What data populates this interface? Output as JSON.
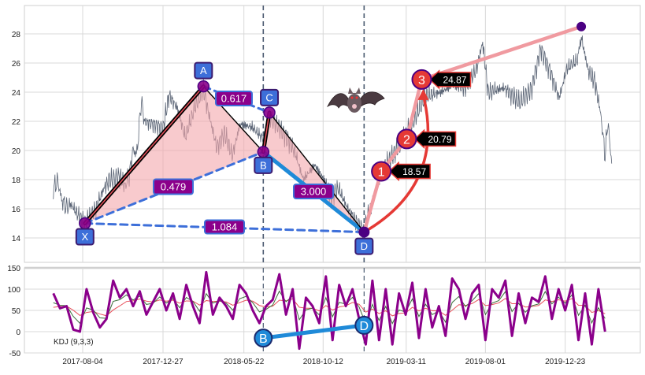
{
  "chart_data": [
    {
      "type": "line",
      "panel": "price",
      "ylim": [
        13,
        29.5
      ],
      "yticks": [
        14,
        16,
        18,
        20,
        22,
        24,
        26,
        28
      ],
      "grid": true,
      "colors": {
        "price": "#5a6475",
        "fill": "#f4a6ab",
        "leg": "#000000",
        "leg_inner": "#e8505b",
        "dashed": "#3d6fd9",
        "bd": "#1f8ad8",
        "target_path": "#f09aa0",
        "target": "#e53935",
        "marker": "#4b0082",
        "vline": "#4a5a70"
      },
      "series": [
        {
          "date": "2017-06-12",
          "value": 17.4
        },
        {
          "date": "2017-06-20",
          "value": 17.9
        },
        {
          "date": "2017-06-27",
          "value": 16.6
        },
        {
          "date": "2017-07-06",
          "value": 16.1
        },
        {
          "date": "2017-07-14",
          "value": 16.3
        },
        {
          "date": "2017-07-28",
          "value": 15.5
        },
        {
          "date": "2017-08-08",
          "value": 15.0
        },
        {
          "date": "2017-08-28",
          "value": 16.0
        },
        {
          "date": "2017-09-10",
          "value": 17.3
        },
        {
          "date": "2017-09-20",
          "value": 17.9
        },
        {
          "date": "2017-10-10",
          "value": 18.2
        },
        {
          "date": "2017-10-20",
          "value": 17.6
        },
        {
          "date": "2017-10-28",
          "value": 18.4
        },
        {
          "date": "2017-11-02",
          "value": 20.0
        },
        {
          "date": "2017-11-10",
          "value": 19.8
        },
        {
          "date": "2017-11-18",
          "value": 23.5
        },
        {
          "date": "2017-11-23",
          "value": 22.0
        },
        {
          "date": "2017-12-10",
          "value": 21.8
        },
        {
          "date": "2017-12-27",
          "value": 21.5
        },
        {
          "date": "2018-01-07",
          "value": 23.8
        },
        {
          "date": "2018-01-22",
          "value": 22.9
        },
        {
          "date": "2018-02-05",
          "value": 20.9
        },
        {
          "date": "2018-02-23",
          "value": 23.0
        },
        {
          "date": "2018-03-10",
          "value": 24.2
        },
        {
          "date": "2018-03-21",
          "value": 22.3
        },
        {
          "date": "2018-04-03",
          "value": 20.2
        },
        {
          "date": "2018-04-17",
          "value": 21.2
        },
        {
          "date": "2018-05-01",
          "value": 19.6
        },
        {
          "date": "2018-05-15",
          "value": 21.8
        },
        {
          "date": "2018-06-06",
          "value": 21.6
        },
        {
          "date": "2018-06-26",
          "value": 20.8
        },
        {
          "date": "2018-07-07",
          "value": 22.3
        },
        {
          "date": "2018-07-25",
          "value": 21.6
        },
        {
          "date": "2018-08-09",
          "value": 20.8
        },
        {
          "date": "2018-08-23",
          "value": 19.8
        },
        {
          "date": "2018-09-06",
          "value": 18.0
        },
        {
          "date": "2018-09-27",
          "value": 19.0
        },
        {
          "date": "2018-10-15",
          "value": 17.9
        },
        {
          "date": "2018-10-26",
          "value": 16.8
        },
        {
          "date": "2018-11-09",
          "value": 17.4
        },
        {
          "date": "2018-11-23",
          "value": 16.2
        },
        {
          "date": "2018-12-07",
          "value": 15.3
        },
        {
          "date": "2018-12-25",
          "value": 14.5
        },
        {
          "date": "2019-01-05",
          "value": 16.0
        },
        {
          "date": "2019-01-19",
          "value": 17.8
        },
        {
          "date": "2019-02-02",
          "value": 19.0
        },
        {
          "date": "2019-02-17",
          "value": 19.8
        },
        {
          "date": "2019-03-10",
          "value": 21.0
        },
        {
          "date": "2019-03-24",
          "value": 22.0
        },
        {
          "date": "2019-04-14",
          "value": 23.7
        },
        {
          "date": "2019-05-13",
          "value": 24.0
        },
        {
          "date": "2019-06-03",
          "value": 24.5
        },
        {
          "date": "2019-06-25",
          "value": 24.2
        },
        {
          "date": "2019-07-16",
          "value": 25.6
        },
        {
          "date": "2019-07-27",
          "value": 27.4
        },
        {
          "date": "2019-08-06",
          "value": 24.0
        },
        {
          "date": "2019-09-04",
          "value": 24.3
        },
        {
          "date": "2019-10-02",
          "value": 23.3
        },
        {
          "date": "2019-10-23",
          "value": 24.2
        },
        {
          "date": "2019-11-09",
          "value": 27.0
        },
        {
          "date": "2019-11-28",
          "value": 25.2
        },
        {
          "date": "2019-12-12",
          "value": 23.6
        },
        {
          "date": "2019-12-26",
          "value": 25.6
        },
        {
          "date": "2020-01-14",
          "value": 26.2
        },
        {
          "date": "2020-01-21",
          "value": 27.8
        },
        {
          "date": "2020-02-03",
          "value": 25.4
        },
        {
          "date": "2020-02-14",
          "value": 24.8
        },
        {
          "date": "2020-02-25",
          "value": 22.6
        },
        {
          "date": "2020-03-04",
          "value": 19.6
        },
        {
          "date": "2020-03-09",
          "value": 22.0
        },
        {
          "date": "2020-03-16",
          "value": 19.1
        }
      ],
      "pattern": {
        "points": [
          {
            "label": "X",
            "date": "2017-08-08",
            "value": 15.0
          },
          {
            "label": "A",
            "date": "2018-03-10",
            "value": 24.4
          },
          {
            "label": "B",
            "date": "2018-06-26",
            "value": 19.9
          },
          {
            "label": "C",
            "date": "2018-07-07",
            "value": 22.6
          },
          {
            "label": "D",
            "date": "2018-12-25",
            "value": 14.4
          }
        ],
        "ratios": {
          "XB": "0.479",
          "AC": "0.617",
          "BD": "3.000",
          "XD": "1.084"
        },
        "targets": [
          {
            "label": "1",
            "date": "2019-01-25",
            "value": 18.57,
            "text": "18.57"
          },
          {
            "label": "2",
            "date": "2019-03-12",
            "value": 20.79,
            "text": "20.79"
          },
          {
            "label": "3",
            "date": "2019-04-08",
            "value": 24.87,
            "text": "24.87"
          }
        ],
        "end_point": {
          "date": "2020-01-21",
          "value": 28.5
        },
        "vlines": [
          "2018-06-26",
          "2018-12-25"
        ],
        "icon": "bat-icon"
      }
    },
    {
      "type": "line",
      "panel": "indicator",
      "label": "KDJ (9,3,3)",
      "ylim": [
        -50,
        150
      ],
      "yticks": [
        -50,
        0,
        50,
        100,
        150
      ],
      "xticks": [
        "2017-08-04",
        "2017-12-27",
        "2018-05-22",
        "2018-10-12",
        "2019-03-11",
        "2019-08-01",
        "2019-12-23"
      ],
      "grid": true,
      "colors": {
        "J": "#8b008b",
        "K": "#3a6e3a",
        "D": "#e8505b",
        "bd": "#1f8ad8"
      },
      "start": "2017-06-12",
      "step_days": 12,
      "J": [
        90,
        55,
        60,
        5,
        0,
        100,
        45,
        10,
        30,
        120,
        80,
        100,
        60,
        95,
        40,
        70,
        100,
        50,
        90,
        30,
        110,
        60,
        20,
        140,
        40,
        80,
        60,
        30,
        110,
        90,
        50,
        20,
        60,
        75,
        135,
        40,
        100,
        -40,
        80,
        60,
        20,
        130,
        -20,
        110,
        60,
        100,
        30,
        -30,
        120,
        -20,
        100,
        -30,
        90,
        40,
        115,
        -15,
        100,
        10,
        60,
        -10,
        125,
        100,
        30,
        90,
        110,
        -20,
        100,
        80,
        120,
        -10,
        90,
        20,
        80,
        70,
        130,
        30,
        100,
        50,
        110,
        -20,
        90,
        -30,
        100,
        0
      ],
      "markers": [
        {
          "label": "B",
          "date": "2018-06-26",
          "value": -15
        },
        {
          "label": "D",
          "date": "2018-12-25",
          "value": 15
        }
      ]
    }
  ]
}
